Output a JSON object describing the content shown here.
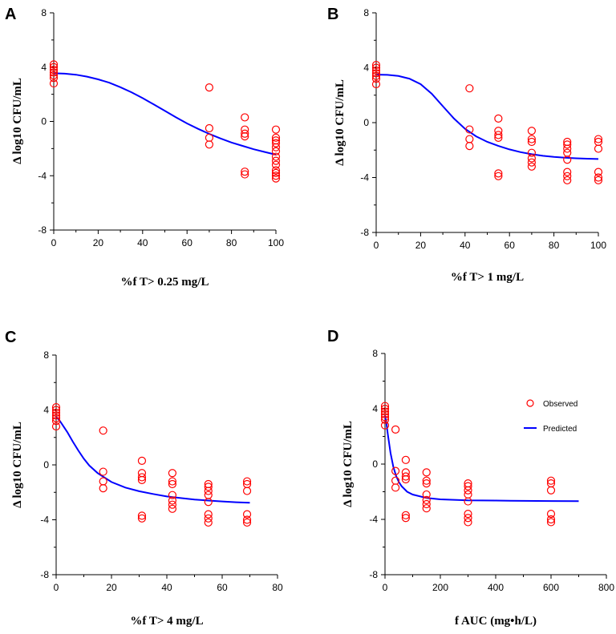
{
  "colors": {
    "observed": "#ff0000",
    "predicted": "#0000ff",
    "axis": "#000000"
  },
  "legend": {
    "observed_label": "Observed",
    "predicted_label": "Predicted",
    "placement": "top-right"
  },
  "chart_data": [
    {
      "panel": "A",
      "type": "scatter",
      "ylabel": "Δ log10 CFU/mL",
      "xlabel": "%f T> 0.25 mg/L",
      "xlim": [
        0,
        100
      ],
      "ylim": [
        -8,
        8
      ],
      "xticks": [
        0,
        20,
        40,
        60,
        80,
        100
      ],
      "yticks": [
        -8,
        -4,
        0,
        4,
        8
      ],
      "legend": false,
      "observed": [
        [
          0,
          4.2
        ],
        [
          0,
          4.0
        ],
        [
          0,
          3.8
        ],
        [
          0,
          3.6
        ],
        [
          0,
          3.4
        ],
        [
          0,
          3.2
        ],
        [
          0,
          2.8
        ],
        [
          70,
          2.5
        ],
        [
          70,
          -0.5
        ],
        [
          70,
          -1.2
        ],
        [
          70,
          -1.7
        ],
        [
          86,
          0.3
        ],
        [
          86,
          -0.6
        ],
        [
          86,
          -0.9
        ],
        [
          86,
          -1.1
        ],
        [
          86,
          -3.7
        ],
        [
          86,
          -3.9
        ],
        [
          100,
          -0.6
        ],
        [
          100,
          -1.2
        ],
        [
          100,
          -1.4
        ],
        [
          100,
          -1.6
        ],
        [
          100,
          -1.9
        ],
        [
          100,
          -2.2
        ],
        [
          100,
          -2.6
        ],
        [
          100,
          -2.9
        ],
        [
          100,
          -3.2
        ],
        [
          100,
          -3.6
        ],
        [
          100,
          -3.8
        ],
        [
          100,
          -4.0
        ],
        [
          100,
          -4.2
        ]
      ],
      "predicted": {
        "x": [
          0,
          5,
          10,
          15,
          20,
          25,
          30,
          35,
          40,
          45,
          50,
          55,
          60,
          65,
          70,
          75,
          80,
          85,
          90,
          95,
          100
        ],
        "y": [
          3.55,
          3.52,
          3.44,
          3.3,
          3.1,
          2.85,
          2.52,
          2.15,
          1.72,
          1.25,
          0.78,
          0.3,
          -0.15,
          -0.55,
          -0.92,
          -1.25,
          -1.55,
          -1.8,
          -2.05,
          -2.25,
          -2.45
        ]
      }
    },
    {
      "panel": "B",
      "type": "scatter",
      "ylabel": "Δ log10 CFU/mL",
      "xlabel": "%f T> 1 mg/L",
      "xlim": [
        0,
        100
      ],
      "ylim": [
        -8,
        8
      ],
      "xticks": [
        0,
        20,
        40,
        60,
        80,
        100
      ],
      "yticks": [
        -8,
        -4,
        0,
        4,
        8
      ],
      "legend": false,
      "observed": [
        [
          0,
          4.2
        ],
        [
          0,
          4.0
        ],
        [
          0,
          3.8
        ],
        [
          0,
          3.6
        ],
        [
          0,
          3.4
        ],
        [
          0,
          3.2
        ],
        [
          0,
          2.8
        ],
        [
          42,
          2.5
        ],
        [
          42,
          -0.5
        ],
        [
          42,
          -1.2
        ],
        [
          42,
          -1.7
        ],
        [
          55,
          0.3
        ],
        [
          55,
          -0.6
        ],
        [
          55,
          -0.9
        ],
        [
          55,
          -1.1
        ],
        [
          55,
          -3.7
        ],
        [
          55,
          -3.9
        ],
        [
          70,
          -0.6
        ],
        [
          70,
          -1.2
        ],
        [
          70,
          -1.4
        ],
        [
          70,
          -2.2
        ],
        [
          70,
          -2.6
        ],
        [
          70,
          -2.9
        ],
        [
          70,
          -3.2
        ],
        [
          86,
          -1.4
        ],
        [
          86,
          -1.6
        ],
        [
          86,
          -1.9
        ],
        [
          86,
          -2.2
        ],
        [
          86,
          -2.7
        ],
        [
          86,
          -3.6
        ],
        [
          86,
          -3.9
        ],
        [
          86,
          -4.2
        ],
        [
          100,
          -1.2
        ],
        [
          100,
          -1.4
        ],
        [
          100,
          -1.9
        ],
        [
          100,
          -3.6
        ],
        [
          100,
          -4.0
        ],
        [
          100,
          -4.2
        ]
      ],
      "predicted": {
        "x": [
          0,
          5,
          10,
          15,
          20,
          25,
          30,
          35,
          40,
          45,
          50,
          55,
          60,
          65,
          70,
          75,
          80,
          85,
          90,
          95,
          100
        ],
        "y": [
          3.5,
          3.48,
          3.4,
          3.2,
          2.8,
          2.1,
          1.2,
          0.3,
          -0.45,
          -1.0,
          -1.4,
          -1.7,
          -1.95,
          -2.15,
          -2.3,
          -2.42,
          -2.5,
          -2.56,
          -2.6,
          -2.63,
          -2.65
        ]
      }
    },
    {
      "panel": "C",
      "type": "scatter",
      "ylabel": "Δ log10 CFU/mL",
      "xlabel": "%f T> 4 mg/L",
      "xlim": [
        0,
        80
      ],
      "ylim": [
        -8,
        8
      ],
      "xticks": [
        0,
        20,
        40,
        60,
        80
      ],
      "yticks": [
        -8,
        -4,
        0,
        4,
        8
      ],
      "legend": false,
      "observed": [
        [
          0,
          4.2
        ],
        [
          0,
          4.0
        ],
        [
          0,
          3.8
        ],
        [
          0,
          3.6
        ],
        [
          0,
          3.4
        ],
        [
          0,
          3.2
        ],
        [
          0,
          2.8
        ],
        [
          17,
          2.5
        ],
        [
          17,
          -0.5
        ],
        [
          17,
          -1.2
        ],
        [
          17,
          -1.7
        ],
        [
          31,
          0.3
        ],
        [
          31,
          -0.6
        ],
        [
          31,
          -0.9
        ],
        [
          31,
          -1.1
        ],
        [
          31,
          -3.7
        ],
        [
          31,
          -3.9
        ],
        [
          42,
          -0.6
        ],
        [
          42,
          -1.2
        ],
        [
          42,
          -1.4
        ],
        [
          42,
          -2.2
        ],
        [
          42,
          -2.6
        ],
        [
          42,
          -2.9
        ],
        [
          42,
          -3.2
        ],
        [
          55,
          -1.4
        ],
        [
          55,
          -1.6
        ],
        [
          55,
          -1.9
        ],
        [
          55,
          -2.2
        ],
        [
          55,
          -2.7
        ],
        [
          55,
          -3.6
        ],
        [
          55,
          -3.9
        ],
        [
          55,
          -4.2
        ],
        [
          69,
          -1.2
        ],
        [
          69,
          -1.4
        ],
        [
          69,
          -1.9
        ],
        [
          69,
          -3.6
        ],
        [
          69,
          -4.0
        ],
        [
          69,
          -4.2
        ]
      ],
      "predicted": {
        "x": [
          0,
          1,
          2,
          4,
          6,
          8,
          10,
          12,
          15,
          20,
          25,
          30,
          35,
          40,
          45,
          50,
          55,
          60,
          65,
          70
        ],
        "y": [
          3.5,
          3.3,
          3.0,
          2.4,
          1.7,
          1.05,
          0.45,
          -0.05,
          -0.6,
          -1.25,
          -1.65,
          -1.92,
          -2.12,
          -2.3,
          -2.42,
          -2.52,
          -2.6,
          -2.66,
          -2.72,
          -2.76
        ]
      }
    },
    {
      "panel": "D",
      "type": "scatter",
      "ylabel": "Δ log10 CFU/mL",
      "xlabel": "f AUC (mg•h/L)",
      "xlim": [
        0,
        800
      ],
      "ylim": [
        -8,
        8
      ],
      "xticks": [
        0,
        200,
        400,
        600,
        800
      ],
      "yticks": [
        -8,
        -4,
        0,
        4,
        8
      ],
      "legend": true,
      "observed": [
        [
          0,
          4.2
        ],
        [
          0,
          4.0
        ],
        [
          0,
          3.8
        ],
        [
          0,
          3.6
        ],
        [
          0,
          3.4
        ],
        [
          0,
          3.2
        ],
        [
          0,
          2.8
        ],
        [
          38,
          2.5
        ],
        [
          38,
          -0.5
        ],
        [
          38,
          -1.2
        ],
        [
          38,
          -1.7
        ],
        [
          75,
          0.3
        ],
        [
          75,
          -0.6
        ],
        [
          75,
          -0.9
        ],
        [
          75,
          -1.1
        ],
        [
          75,
          -3.7
        ],
        [
          75,
          -3.9
        ],
        [
          150,
          -0.6
        ],
        [
          150,
          -1.2
        ],
        [
          150,
          -1.4
        ],
        [
          150,
          -2.2
        ],
        [
          150,
          -2.6
        ],
        [
          150,
          -2.9
        ],
        [
          150,
          -3.2
        ],
        [
          300,
          -1.4
        ],
        [
          300,
          -1.6
        ],
        [
          300,
          -1.9
        ],
        [
          300,
          -2.2
        ],
        [
          300,
          -2.7
        ],
        [
          300,
          -3.6
        ],
        [
          300,
          -3.9
        ],
        [
          300,
          -4.2
        ],
        [
          600,
          -1.2
        ],
        [
          600,
          -1.4
        ],
        [
          600,
          -1.9
        ],
        [
          600,
          -3.6
        ],
        [
          600,
          -4.0
        ],
        [
          600,
          -4.2
        ]
      ],
      "predicted": {
        "x": [
          0,
          5,
          10,
          20,
          30,
          40,
          50,
          60,
          80,
          100,
          150,
          200,
          300,
          400,
          500,
          600,
          700
        ],
        "y": [
          3.5,
          3.0,
          2.2,
          0.8,
          -0.2,
          -0.85,
          -1.3,
          -1.6,
          -2.0,
          -2.2,
          -2.45,
          -2.55,
          -2.62,
          -2.64,
          -2.66,
          -2.67,
          -2.68
        ]
      }
    }
  ]
}
